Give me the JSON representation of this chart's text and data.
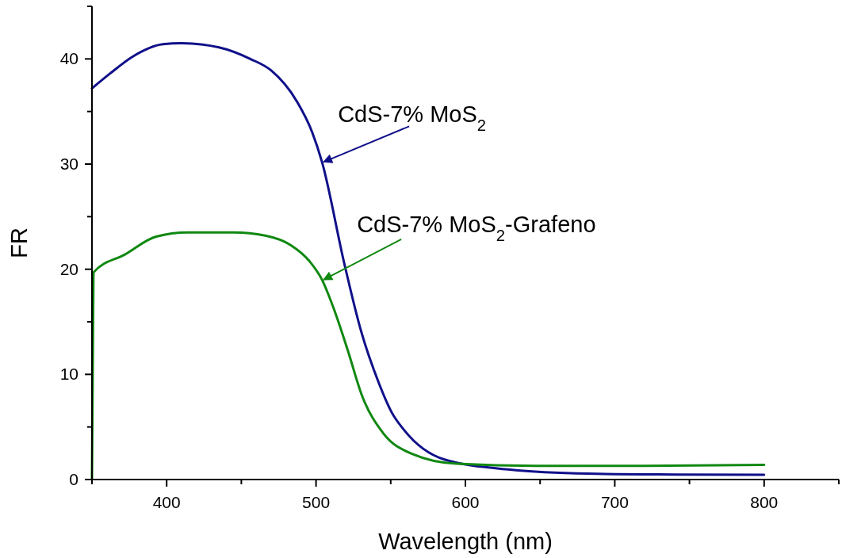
{
  "chart_data": {
    "type": "line",
    "xlabel": "Wavelength (nm)",
    "ylabel": "FR",
    "xlim": [
      350,
      850
    ],
    "ylim": [
      0,
      45
    ],
    "xticks": [
      {
        "value": 350,
        "label": null
      },
      400,
      {
        "value": 450,
        "label": null
      },
      500,
      {
        "value": 550,
        "label": null
      },
      600,
      {
        "value": 650,
        "label": null
      },
      700,
      {
        "value": 750,
        "label": null
      },
      800,
      {
        "value": 850,
        "label": null
      }
    ],
    "yticks": [
      0,
      {
        "value": 5,
        "label": null
      },
      10,
      {
        "value": 15,
        "label": null
      },
      20,
      {
        "value": 25,
        "label": null
      },
      30,
      {
        "value": 35,
        "label": null
      },
      40,
      {
        "value": 45,
        "label": null
      }
    ],
    "grid": false,
    "marker": "none",
    "line_style": "solid",
    "series": [
      {
        "color": "#10108a",
        "x": [
          350,
          362,
          377,
          397.5,
          410,
          435,
          456,
          470,
          487,
          497.5,
          504,
          519,
          530,
          542,
          550.6,
          559,
          586,
          630,
          682,
          740,
          800
        ],
        "values": [
          37.2,
          38.6,
          40.2,
          41.4,
          41.5,
          41.1,
          40.0,
          38.9,
          36.0,
          33.0,
          30.2,
          20.5,
          14.2,
          9.2,
          6.4,
          4.7,
          1.9,
          0.94,
          0.56,
          0.48,
          0.45
        ]
      },
      {
        "color": "#118811",
        "x": [
          350,
          351,
          372,
          393,
          414,
          445,
          466,
          483,
          495.4,
          504,
          512,
          521,
          531,
          545,
          565,
          594,
          647,
          720,
          800
        ],
        "values": [
          0,
          19.7,
          21.4,
          23.1,
          23.5,
          23.5,
          23.2,
          22.3,
          20.8,
          19.0,
          16.2,
          12.4,
          7.9,
          4.4,
          2.4,
          1.5,
          1.3,
          1.3,
          1.4
        ]
      }
    ],
    "annotations": [
      {
        "text": "CdS-7% MoS$_{2}$",
        "x": 504,
        "y": 30.2
      },
      {
        "text": "CdS-7% MoS$_{2}$-Grafeno",
        "x": 504,
        "y": 19.0
      }
    ]
  }
}
